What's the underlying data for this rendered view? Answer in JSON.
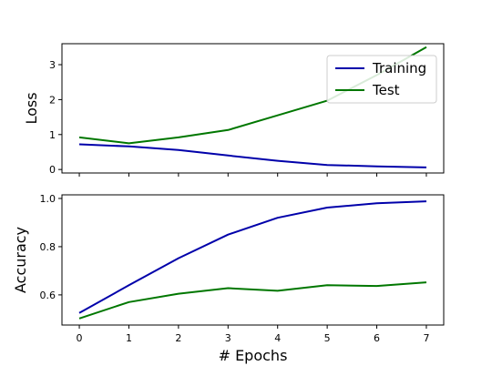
{
  "chart_data": [
    {
      "type": "line",
      "title": "",
      "xlabel": "",
      "ylabel": "Loss",
      "x": [
        0,
        1,
        2,
        3,
        4,
        5,
        6,
        7
      ],
      "xlim": [
        -0.35,
        7.35
      ],
      "ylim": [
        -0.1,
        3.6
      ],
      "xticks": [
        0,
        1,
        2,
        3,
        4,
        5,
        6,
        7
      ],
      "yticks": [
        0,
        1,
        2,
        3
      ],
      "xtick_labels_visible": false,
      "grid": false,
      "legend_position": "top-right",
      "series": [
        {
          "name": "Training",
          "color": "#0000aa",
          "values": [
            0.72,
            0.66,
            0.56,
            0.4,
            0.25,
            0.13,
            0.09,
            0.06
          ]
        },
        {
          "name": "Test",
          "color": "#007700",
          "values": [
            0.92,
            0.75,
            0.92,
            1.13,
            1.55,
            1.97,
            2.7,
            3.5
          ]
        }
      ]
    },
    {
      "type": "line",
      "title": "",
      "xlabel": "# Epochs",
      "ylabel": "Accuracy",
      "x": [
        0,
        1,
        2,
        3,
        4,
        5,
        6,
        7
      ],
      "xlim": [
        -0.35,
        7.35
      ],
      "ylim": [
        0.475,
        1.015
      ],
      "xticks": [
        0,
        1,
        2,
        3,
        4,
        5,
        6,
        7
      ],
      "yticks": [
        0.6,
        0.8,
        1.0
      ],
      "xtick_labels_visible": true,
      "grid": false,
      "series": [
        {
          "name": "Training",
          "color": "#0000aa",
          "values": [
            0.525,
            0.64,
            0.752,
            0.85,
            0.92,
            0.962,
            0.98,
            0.988
          ]
        },
        {
          "name": "Test",
          "color": "#007700",
          "values": [
            0.502,
            0.57,
            0.605,
            0.628,
            0.617,
            0.64,
            0.637,
            0.652
          ]
        }
      ]
    }
  ]
}
